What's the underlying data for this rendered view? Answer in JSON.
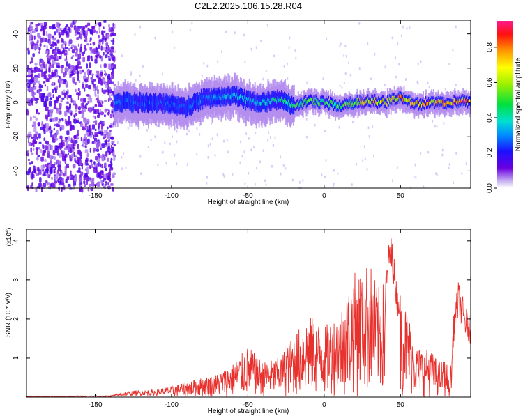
{
  "title": "C2E2.2025.106.15.28.R04",
  "chart_data": [
    {
      "type": "heatmap",
      "xlabel": "Height of straight line (km)",
      "ylabel": "Frequency (Hz)",
      "xlim": [
        -195,
        96
      ],
      "ylim": [
        -50,
        48
      ],
      "x_ticks": [
        -150,
        -100,
        -50,
        0,
        50
      ],
      "y_ticks": [
        40,
        20,
        0,
        -20,
        -40
      ],
      "x_tick_labels": [
        "-150",
        "-100",
        "-50",
        "0",
        "50"
      ],
      "y_tick_labels": [
        "40",
        "20",
        "0",
        "-20",
        "-40"
      ],
      "colorbar": {
        "label": "Normalized spectral amplitude",
        "range": [
          0,
          0.95
        ],
        "ticks": [
          0.0,
          0.2,
          0.4,
          0.6,
          0.8
        ],
        "tick_labels": [
          "0.0",
          "0.2",
          "0.4",
          "0.6",
          "0.8"
        ]
      },
      "noise_region_x": [
        -195,
        -138
      ],
      "ridge": {
        "x": [
          -138,
          -120,
          -100,
          -90,
          -80,
          -70,
          -60,
          -50,
          -40,
          -30,
          -20,
          -10,
          0,
          10,
          20,
          30,
          40,
          50,
          60,
          70,
          80,
          90,
          96
        ],
        "y": [
          0,
          0,
          -1,
          -3,
          2,
          3,
          4,
          1,
          0,
          2,
          -2,
          1,
          0,
          -2,
          0,
          1,
          0,
          3,
          -1,
          0,
          -1,
          1,
          0
        ],
        "amp": [
          0.3,
          0.25,
          0.25,
          0.25,
          0.3,
          0.3,
          0.35,
          0.35,
          0.35,
          0.4,
          0.45,
          0.55,
          0.5,
          0.55,
          0.6,
          0.7,
          0.7,
          0.75,
          0.7,
          0.75,
          0.75,
          0.8,
          0.85
        ]
      }
    },
    {
      "type": "line",
      "xlabel": "Height of straight line (km)",
      "ylabel": "SNR (10 * v/v)",
      "multiplier_label": "(x10",
      "multiplier_exp": "4",
      "xlim": [
        -195,
        96
      ],
      "ylim": [
        0,
        4.3
      ],
      "x_ticks": [
        -150,
        -100,
        -50,
        0,
        50
      ],
      "y_ticks": [
        1,
        2,
        3,
        4
      ],
      "x_tick_labels": [
        "-150",
        "-100",
        "-50",
        "0",
        "50"
      ],
      "y_tick_labels": [
        "1",
        "2",
        "3",
        "4"
      ],
      "color": "#e8312d",
      "envelope": {
        "x": [
          -195,
          -140,
          -130,
          -110,
          -100,
          -90,
          -80,
          -70,
          -60,
          -50,
          -40,
          -30,
          -20,
          -10,
          0,
          10,
          20,
          30,
          35,
          40,
          43,
          45,
          48,
          55,
          60,
          70,
          75,
          80,
          82,
          85,
          88,
          92,
          96
        ],
        "max": [
          0.02,
          0.04,
          0.15,
          0.2,
          0.28,
          0.4,
          0.5,
          0.6,
          0.85,
          1.3,
          0.9,
          1.0,
          1.6,
          2.1,
          1.8,
          2.2,
          3.2,
          3.5,
          2.8,
          3.0,
          4.2,
          4.0,
          2.8,
          2.2,
          1.3,
          1.2,
          0.9,
          1.0,
          0.3,
          2.2,
          3.0,
          2.4,
          2.0
        ]
      }
    }
  ]
}
